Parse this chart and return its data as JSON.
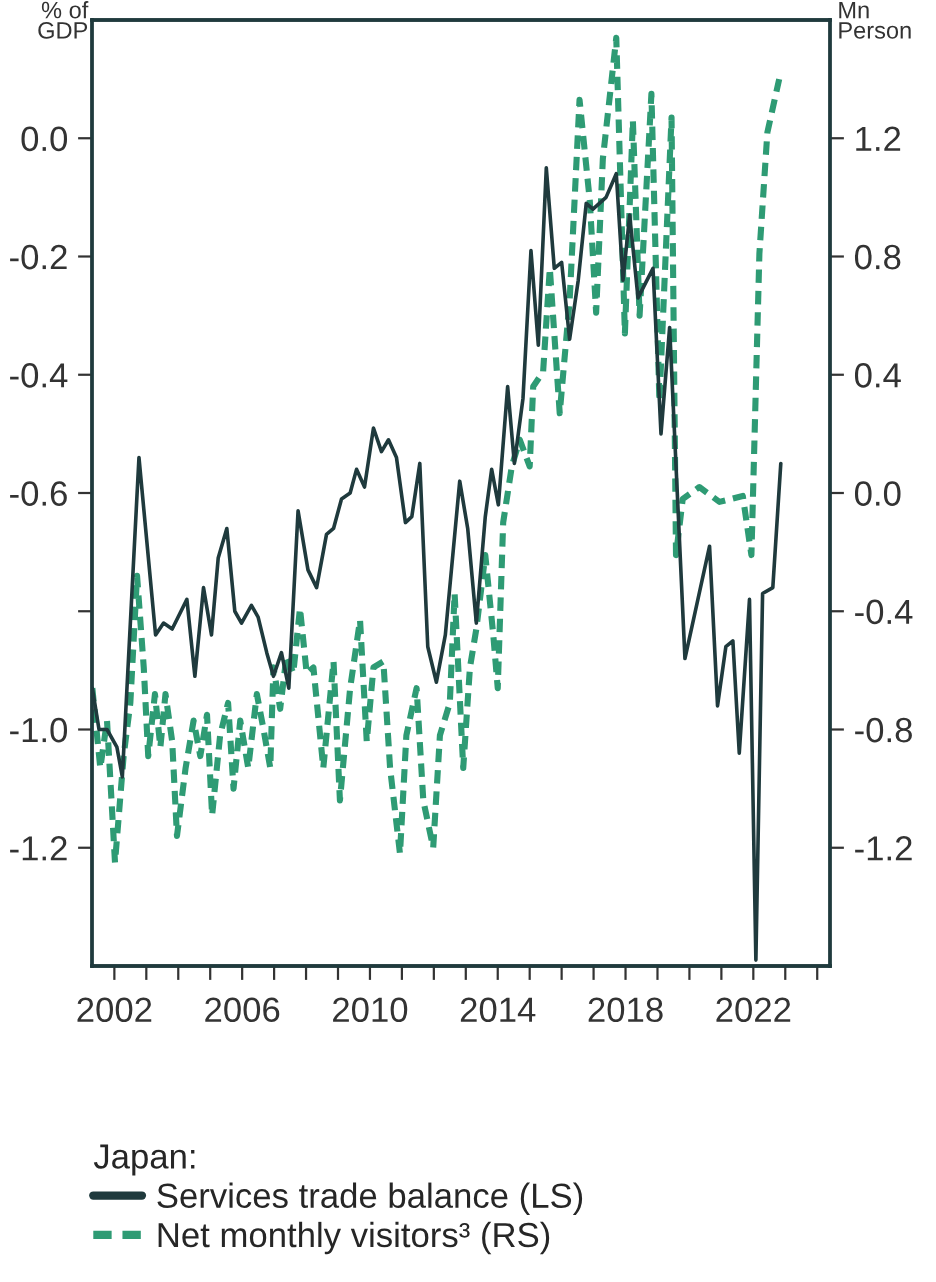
{
  "chart_data": {
    "type": "line",
    "ylabel": "% of GDP",
    "y2label": "Mn Person",
    "legend_title": "Japan:",
    "xlim": [
      2001.3,
      2024.4
    ],
    "xticks": [
      2002,
      {
        "value": 2003,
        "label": null
      },
      {
        "value": 2004,
        "label": null
      },
      {
        "value": 2005,
        "label": null
      },
      2006,
      {
        "value": 2007,
        "label": null
      },
      {
        "value": 2008,
        "label": null
      },
      {
        "value": 2009,
        "label": null
      },
      2010,
      {
        "value": 2011,
        "label": null
      },
      {
        "value": 2012,
        "label": null
      },
      {
        "value": 2013,
        "label": null
      },
      2014,
      {
        "value": 2015,
        "label": null
      },
      {
        "value": 2016,
        "label": null
      },
      {
        "value": 2017,
        "label": null
      },
      2018,
      {
        "value": 2019,
        "label": null
      },
      {
        "value": 2020,
        "label": null
      },
      {
        "value": 2021,
        "label": null
      },
      2022,
      {
        "value": 2023,
        "label": null
      },
      {
        "value": 2024,
        "label": null
      }
    ],
    "ylim": [
      -1.4,
      0.2
    ],
    "yticks": [
      {
        "value": 0,
        "label": "0.0"
      },
      -0.2,
      -0.4,
      -0.6,
      {
        "value": -0.8,
        "label": null
      },
      {
        "value": -1,
        "label": "-1.0"
      },
      -1.2
    ],
    "y2lim": [
      -1.6,
      1.6
    ],
    "y2ticks": [
      1.2,
      0.8,
      0.4,
      {
        "value": 0,
        "label": "0.0"
      },
      -0.4,
      -0.8,
      -1.2
    ],
    "legend": "bottom",
    "grid": false,
    "series": [
      {
        "name": "Services trade balance (LS)",
        "color": "#1f3a3d",
        "line_style": "solid",
        "x": [
          2001.31,
          2001.52,
          2001.77,
          2002.08,
          2002.25,
          2002.77,
          2003.29,
          2003.54,
          2003.81,
          2004.27,
          2004.52,
          2004.79,
          2005.04,
          2005.25,
          2005.52,
          2005.77,
          2005.98,
          2006.29,
          2006.5,
          2006.77,
          2006.98,
          2007.23,
          2007.46,
          2007.75,
          2008.06,
          2008.33,
          2008.64,
          2008.86,
          2009.11,
          2009.38,
          2009.58,
          2009.83,
          2010.11,
          2010.36,
          2010.58,
          2010.83,
          2011.11,
          2011.31,
          2011.56,
          2011.81,
          2012.08,
          2012.36,
          2012.81,
          2013.06,
          2013.33,
          2013.61,
          2013.81,
          2014.02,
          2014.31,
          2014.52,
          2014.79,
          2015.04,
          2015.27,
          2015.52,
          2015.77,
          2016.0,
          2016.25,
          2016.52,
          2016.77,
          2016.98,
          2017.39,
          2017.71,
          2017.92,
          2018.13,
          2018.39,
          2018.86,
          2019.11,
          2019.38,
          2019.86,
          2020.63,
          2020.88,
          2021.14,
          2021.36,
          2021.56,
          2021.88,
          2022.08,
          2022.29,
          2022.61,
          2022.86
        ],
        "values": [
          -0.93,
          -1.0,
          -1.0,
          -1.03,
          -1.08,
          -0.54,
          -0.84,
          -0.82,
          -0.83,
          -0.78,
          -0.91,
          -0.76,
          -0.84,
          -0.71,
          -0.66,
          -0.8,
          -0.82,
          -0.79,
          -0.81,
          -0.87,
          -0.91,
          -0.87,
          -0.93,
          -0.63,
          -0.73,
          -0.76,
          -0.67,
          -0.66,
          -0.61,
          -0.6,
          -0.56,
          -0.59,
          -0.49,
          -0.53,
          -0.51,
          -0.54,
          -0.65,
          -0.64,
          -0.55,
          -0.86,
          -0.92,
          -0.84,
          -0.58,
          -0.66,
          -0.82,
          -0.64,
          -0.56,
          -0.62,
          -0.42,
          -0.55,
          -0.44,
          -0.19,
          -0.35,
          -0.05,
          -0.22,
          -0.21,
          -0.34,
          -0.24,
          -0.11,
          -0.12,
          -0.1,
          -0.06,
          -0.24,
          -0.13,
          -0.27,
          -0.22,
          -0.5,
          -0.32,
          -0.88,
          -0.69,
          -0.96,
          -0.86,
          -0.85,
          -1.04,
          -0.78,
          -1.39,
          -0.77,
          -0.76,
          -0.55
        ]
      },
      {
        "name": "Net monthly visitors³ (RS)",
        "color": "#2e9b74",
        "line_style": "dashed",
        "axis": "y2",
        "x": [
          2001.31,
          2001.56,
          2001.77,
          2002.02,
          2002.29,
          2002.5,
          2002.71,
          2002.92,
          2003.06,
          2003.27,
          2003.44,
          2003.6,
          2003.81,
          2003.96,
          2004.23,
          2004.48,
          2004.69,
          2004.9,
          2005.06,
          2005.31,
          2005.56,
          2005.73,
          2005.94,
          2006.19,
          2006.46,
          2006.67,
          2006.88,
          2006.98,
          2007.19,
          2007.39,
          2007.6,
          2007.81,
          2008.02,
          2008.23,
          2008.54,
          2008.86,
          2009.06,
          2009.38,
          2009.69,
          2009.9,
          2010.11,
          2010.42,
          2010.63,
          2010.94,
          2011.14,
          2011.46,
          2011.67,
          2011.98,
          2012.19,
          2012.5,
          2012.65,
          2012.92,
          2013.13,
          2013.33,
          2013.61,
          2013.86,
          2014.0,
          2014.17,
          2014.44,
          2014.69,
          2015.0,
          2015.11,
          2015.42,
          2015.63,
          2015.94,
          2016.25,
          2016.56,
          2016.88,
          2017.08,
          2017.29,
          2017.71,
          2017.98,
          2018.23,
          2018.44,
          2018.81,
          2019.06,
          2019.44,
          2019.58,
          2019.79,
          2020.31,
          2020.94,
          2021.67,
          2021.94,
          2022.19,
          2022.44,
          2022.81
        ],
        "values": [
          -0.66,
          -0.93,
          -0.77,
          -1.25,
          -0.89,
          -0.71,
          -0.28,
          -0.59,
          -0.89,
          -0.68,
          -0.86,
          -0.68,
          -0.84,
          -1.16,
          -0.93,
          -0.77,
          -0.89,
          -0.75,
          -1.09,
          -0.82,
          -0.71,
          -1.0,
          -0.77,
          -0.93,
          -0.68,
          -0.8,
          -0.93,
          -0.59,
          -0.73,
          -0.55,
          -0.61,
          -0.39,
          -0.61,
          -0.59,
          -0.93,
          -0.57,
          -1.04,
          -0.66,
          -0.43,
          -0.84,
          -0.59,
          -0.57,
          -0.93,
          -1.22,
          -0.82,
          -0.66,
          -1.04,
          -1.2,
          -0.82,
          -0.71,
          -0.34,
          -0.93,
          -0.59,
          -0.46,
          -0.21,
          -0.48,
          -0.66,
          -0.1,
          0.09,
          0.18,
          0.09,
          0.36,
          0.41,
          0.76,
          0.27,
          0.65,
          1.33,
          0.99,
          0.61,
          1.13,
          1.54,
          0.54,
          1.26,
          0.6,
          1.35,
          0.31,
          1.27,
          -0.21,
          -0.02,
          0.02,
          -0.03,
          -0.01,
          -0.21,
          0.81,
          1.22,
          1.4
        ]
      }
    ]
  }
}
